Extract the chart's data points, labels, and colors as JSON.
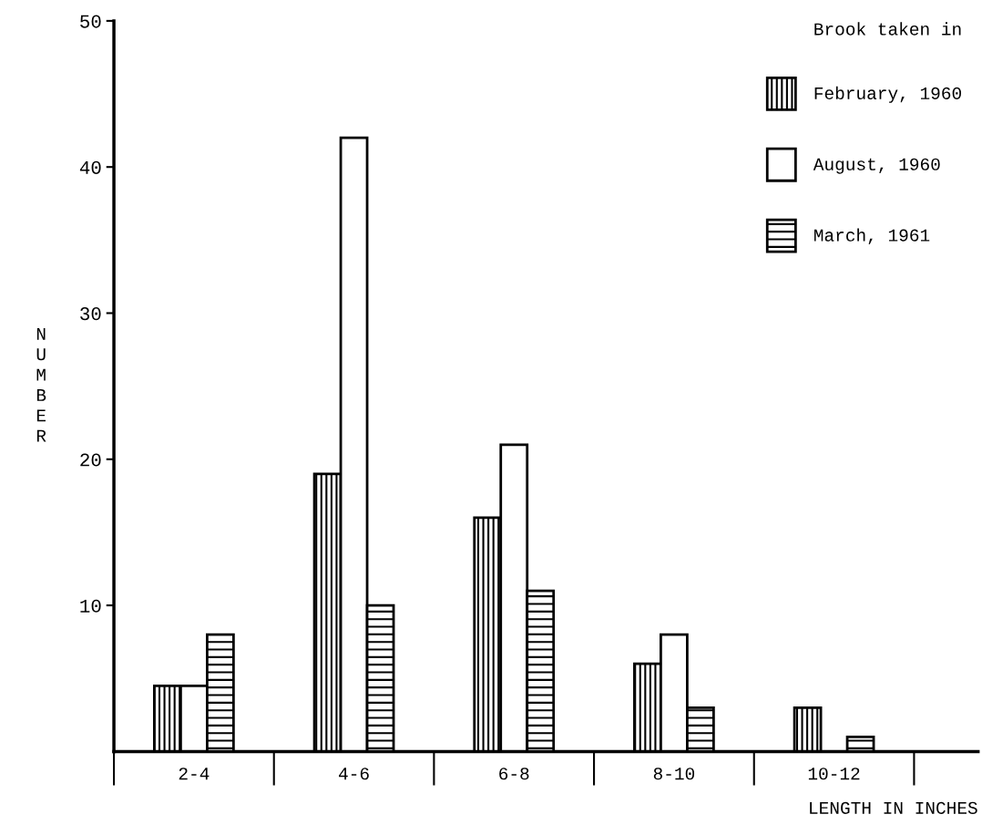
{
  "chart_data": {
    "type": "bar",
    "xlabel": "LENGTH IN INCHES",
    "ylabel": "NUMBER",
    "legend_title": "Brook taken in",
    "categories": [
      "2-4",
      "4-6",
      "6-8",
      "8-10",
      "10-12"
    ],
    "series": [
      {
        "name": "February, 1960",
        "color": "#000000",
        "values": [
          4.5,
          19,
          16,
          6,
          3
        ]
      },
      {
        "name": "August, 1960",
        "color": "#000000",
        "values": [
          4.5,
          42,
          21,
          8,
          0
        ]
      },
      {
        "name": "March, 1961",
        "color": "#000000",
        "values": [
          8,
          10,
          11,
          3,
          1
        ]
      }
    ],
    "ylim": [
      0,
      50
    ],
    "yticks": [
      10,
      20,
      30,
      40,
      50
    ],
    "legend": "top right",
    "grid": false
  }
}
